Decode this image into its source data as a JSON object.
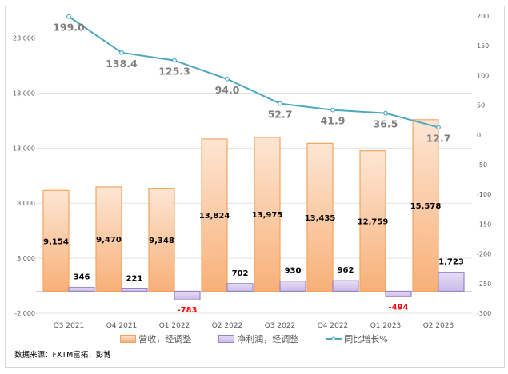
{
  "chart_data": {
    "type": "bar",
    "categories": [
      "Q3 2021",
      "Q4 2021",
      "Q1 2022",
      "Q2 2022",
      "Q3 2022",
      "Q4 2022",
      "Q1 2023",
      "Q2 2023"
    ],
    "series": [
      {
        "name": "营收，经调整",
        "type": "bar",
        "axis": "left",
        "values": [
          9154,
          9470,
          9348,
          13824,
          13975,
          13435,
          12759,
          15578
        ],
        "labels": [
          "9,154",
          "9,470",
          "9,348",
          "13,824",
          "13,975",
          "13,435",
          "12,759",
          "15,578"
        ],
        "color": "#f8b27a"
      },
      {
        "name": "净利润，经调整",
        "type": "bar",
        "axis": "left",
        "values": [
          346,
          221,
          -783,
          702,
          930,
          962,
          -494,
          1723
        ],
        "labels": [
          "346",
          "221",
          "-783",
          "702",
          "930",
          "962",
          "-494",
          "1,723"
        ],
        "color": "#d5c8ec"
      },
      {
        "name": "同比增长%",
        "type": "line",
        "axis": "right",
        "values": [
          199.0,
          138.4,
          125.3,
          94.0,
          52.7,
          41.9,
          36.5,
          12.7
        ],
        "labels": [
          "199.0",
          "138.4",
          "125.3",
          "94.0",
          "52.7",
          "41.9",
          "36.5",
          "12.7"
        ],
        "color": "#4aa8c0"
      }
    ],
    "y_left": {
      "ylim": [
        -2000,
        25000
      ],
      "ticks": [
        -2000,
        3000,
        8000,
        13000,
        18000,
        23000
      ],
      "tick_labels": [
        "-2,000",
        "3,000",
        "8,000",
        "13,000",
        "18,000",
        "23,000"
      ]
    },
    "y_right": {
      "ylim": [
        -300,
        200
      ],
      "ticks": [
        -300,
        -250,
        -200,
        -150,
        -100,
        -50,
        0,
        50,
        100,
        150,
        200
      ],
      "tick_labels": [
        "-300",
        "-250",
        "-200",
        "-150",
        "-100",
        "-50",
        "0",
        "50",
        "100",
        "150",
        "200"
      ]
    },
    "grid": true,
    "legend_placement": "bottom",
    "negative_label_color": "#ff0000"
  },
  "source": "数据来源：FXTM富拓、彭博"
}
